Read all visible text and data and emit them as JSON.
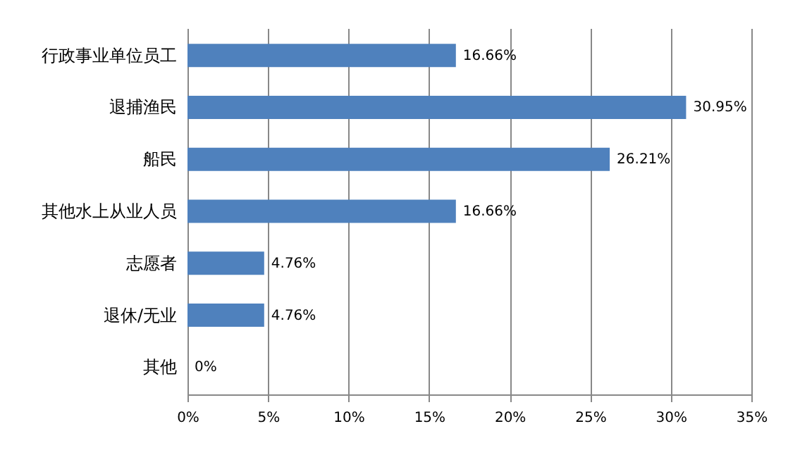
{
  "chart_data": {
    "type": "bar",
    "orientation": "horizontal",
    "categories": [
      "行政事业单位员工",
      "退捕渔民",
      "船民",
      "其他水上从业人员",
      "志愿者",
      "退休/无业",
      "其他"
    ],
    "values": [
      16.66,
      30.95,
      26.21,
      16.66,
      4.76,
      4.76,
      0
    ],
    "value_labels": [
      "16.66%",
      "30.95%",
      "26.21%",
      "16.66%",
      "4.76%",
      "4.76%",
      "0%"
    ],
    "color": "#4f81bd",
    "xlim": [
      0,
      35
    ],
    "xticks": [
      {
        "value": 0,
        "label": "0%"
      },
      {
        "value": 5,
        "label": "5%"
      },
      {
        "value": 10,
        "label": "10%"
      },
      {
        "value": 15,
        "label": "15%"
      },
      {
        "value": 20,
        "label": "20%"
      },
      {
        "value": 25,
        "label": "25%"
      },
      {
        "value": 30,
        "label": "30%"
      },
      {
        "value": 35,
        "label": "35%"
      }
    ],
    "grid": "x"
  }
}
